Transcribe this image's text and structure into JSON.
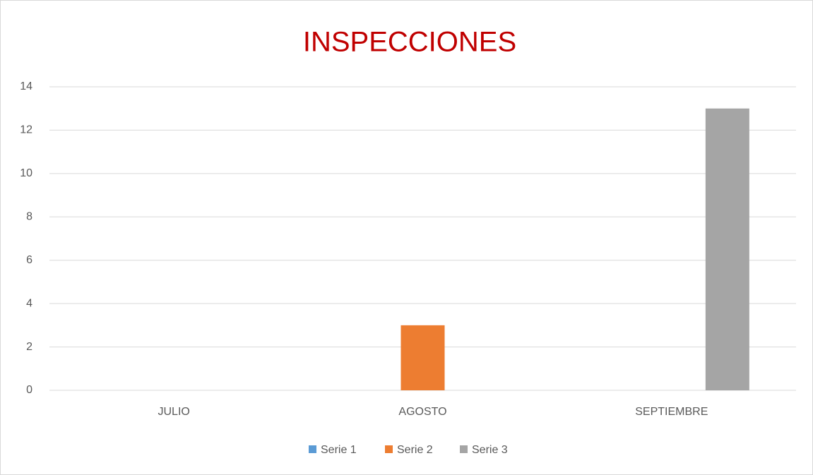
{
  "chart_data": {
    "type": "bar",
    "title": "INSPECCIONES",
    "categories": [
      "JULIO",
      "AGOSTO",
      "SEPTIEMBRE"
    ],
    "series": [
      {
        "name": "Serie 1",
        "color": "#5B9BD5",
        "values": [
          0,
          0,
          0
        ]
      },
      {
        "name": "Serie 2",
        "color": "#ED7D31",
        "values": [
          0,
          3,
          0
        ]
      },
      {
        "name": "Serie 3",
        "color": "#A5A5A5",
        "values": [
          0,
          0,
          13
        ]
      }
    ],
    "ylim": [
      0,
      14
    ],
    "yticks": [
      0,
      2,
      4,
      6,
      8,
      10,
      12,
      14
    ],
    "grid": true,
    "legend": "bottom"
  }
}
